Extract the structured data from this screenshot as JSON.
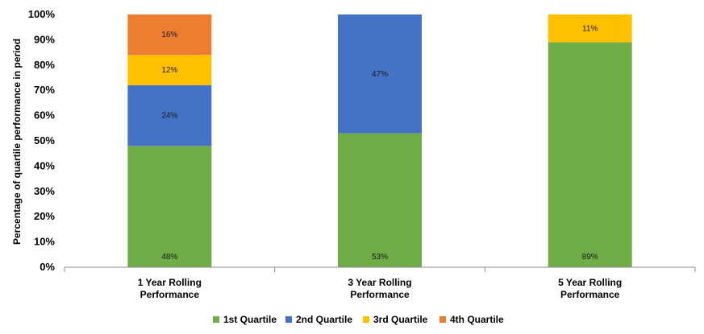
{
  "chart_data": {
    "type": "bar",
    "stacked": true,
    "categories": [
      [
        "1 Year Rolling",
        "Performance"
      ],
      [
        "3 Year Rolling",
        "Performance"
      ],
      [
        "5 Year Rolling",
        "Performance"
      ]
    ],
    "series": [
      {
        "name": "1st Quartile",
        "color": "#70AD47",
        "values": [
          48,
          53,
          89
        ],
        "labels": [
          "48%",
          "53%",
          "89%"
        ]
      },
      {
        "name": "2nd Quartile",
        "color": "#4472C4",
        "values": [
          24,
          47,
          0
        ],
        "labels": [
          "24%",
          "47%",
          ""
        ]
      },
      {
        "name": "3rd Quartile",
        "color": "#FFC000",
        "values": [
          12,
          0,
          11
        ],
        "labels": [
          "12%",
          "",
          "11%"
        ]
      },
      {
        "name": "4th Quartile",
        "color": "#ED7D31",
        "values": [
          16,
          0,
          0
        ],
        "labels": [
          "16%",
          "",
          ""
        ]
      }
    ],
    "ylabel": "Percentage of quartile performance in period",
    "ylim": [
      0,
      100
    ],
    "yticks": [
      "0%",
      "10%",
      "20%",
      "30%",
      "40%",
      "50%",
      "60%",
      "70%",
      "80%",
      "90%",
      "100%"
    ],
    "legend_position": "bottom",
    "grid": false
  }
}
